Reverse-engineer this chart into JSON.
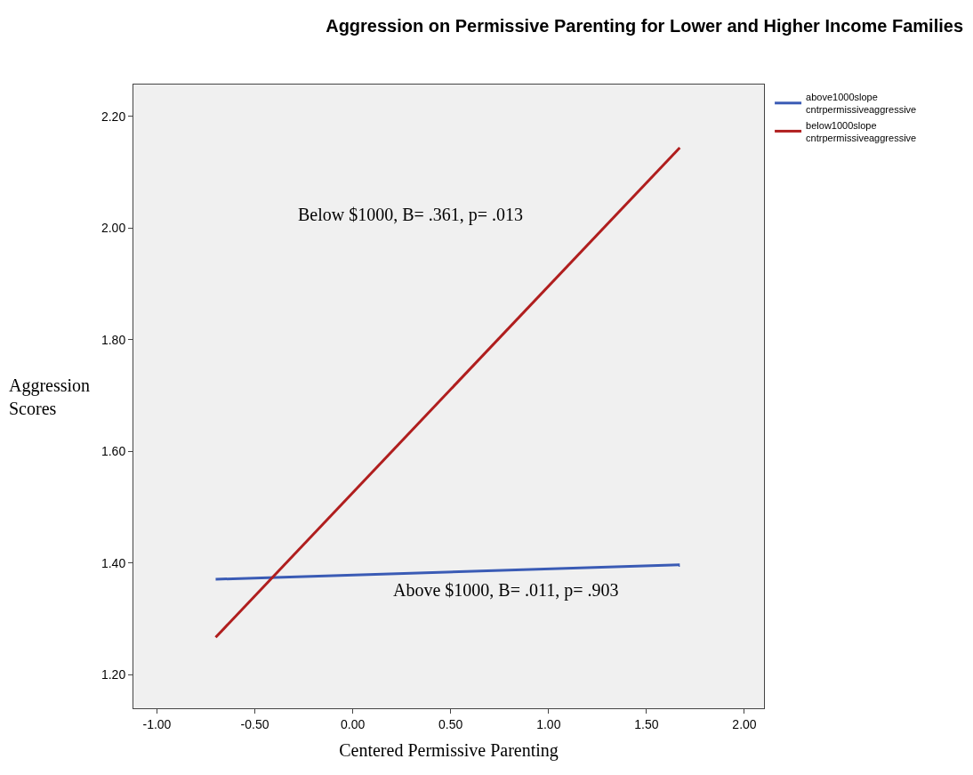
{
  "chart_data": {
    "type": "line",
    "title": "Aggression on Permissive Parenting for Lower and Higher Income Families",
    "xlabel": "Centered Permissive Parenting",
    "ylabel": "Aggression\nScores",
    "series": [
      {
        "name": "above1000slope\ncntrpermissiveaggressive",
        "color": "#3a5bb5",
        "values": [
          1.371,
          1.397
        ]
      },
      {
        "name": "below1000slope\ncntrpermissiveaggressive",
        "color": "#b01e1e",
        "values": [
          1.267,
          2.144
        ]
      }
    ],
    "x": [
      -0.7,
      1.67
    ],
    "annotations": [
      "Below $1000, B= .361, p= .013",
      "Above $1000, B= .011, p= .903"
    ],
    "xlim": [
      -1.12,
      2.1
    ],
    "xticks": [
      {
        "value": -1,
        "label": "-1.00"
      },
      {
        "value": -0.5,
        "label": "-0.50"
      },
      {
        "value": 0,
        "label": "0.00"
      },
      {
        "value": 0.5,
        "label": "0.50"
      },
      {
        "value": 1,
        "label": "1.00"
      },
      {
        "value": 1.5,
        "label": "1.50"
      },
      {
        "value": 2,
        "label": "2.00"
      }
    ],
    "ylim": [
      1.14,
      2.257
    ],
    "yticks": [
      {
        "value": 1.2,
        "label": "1.20"
      },
      {
        "value": 1.4,
        "label": "1.40"
      },
      {
        "value": 1.6,
        "label": "1.60"
      },
      {
        "value": 1.8,
        "label": "1.80"
      },
      {
        "value": 2.0,
        "label": "2.00"
      },
      {
        "value": 2.2,
        "label": "2.20"
      }
    ],
    "grid": false,
    "legend": "top right",
    "marker": "none",
    "line_style": "solid"
  }
}
